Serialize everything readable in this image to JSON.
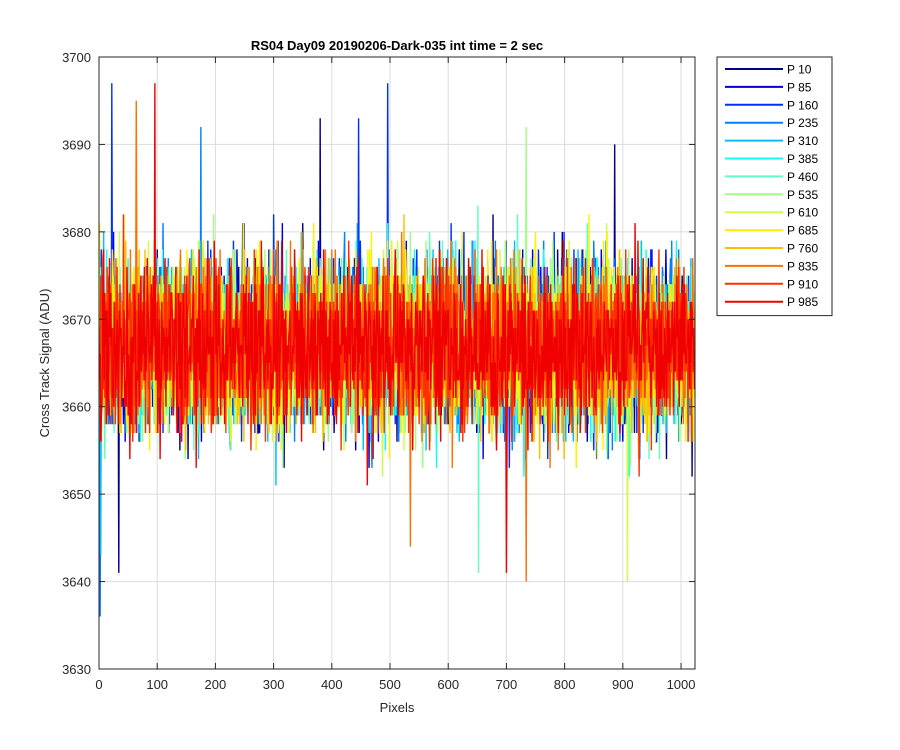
{
  "chart_data": {
    "type": "line",
    "title": "RS04 Day09 20190206-Dark-035 int time = 2 sec",
    "xlabel": "Pixels",
    "ylabel": "Cross Track Signal (ADU)",
    "xlim": [
      0,
      1024
    ],
    "ylim": [
      3630,
      3700
    ],
    "xticks": [
      0,
      100,
      200,
      300,
      400,
      500,
      600,
      700,
      800,
      900,
      1000
    ],
    "yticks": [
      3630,
      3640,
      3650,
      3660,
      3670,
      3680,
      3690,
      3700
    ],
    "grid": true,
    "legend_position": "outside-top-right",
    "x_count": 1024,
    "series": [
      {
        "name": "P 10",
        "color": "#00008F",
        "mean": 3667,
        "spread": 8.5
      },
      {
        "name": "P 85",
        "color": "#0000DF",
        "mean": 3667,
        "spread": 8.5
      },
      {
        "name": "P 160",
        "color": "#0030FF",
        "mean": 3667,
        "spread": 8.5
      },
      {
        "name": "P 235",
        "color": "#0080FF",
        "mean": 3667,
        "spread": 8.5
      },
      {
        "name": "P 310",
        "color": "#00C0FF",
        "mean": 3667,
        "spread": 8.5
      },
      {
        "name": "P 385",
        "color": "#10FFEF",
        "mean": 3667,
        "spread": 8.5
      },
      {
        "name": "P 460",
        "color": "#60FFC0",
        "mean": 3667,
        "spread": 8.5
      },
      {
        "name": "P 535",
        "color": "#9FFF80",
        "mean": 3667,
        "spread": 8.5
      },
      {
        "name": "P 610",
        "color": "#CFFF40",
        "mean": 3667,
        "spread": 8.5
      },
      {
        "name": "P 685",
        "color": "#FFF000",
        "mean": 3667,
        "spread": 8.5
      },
      {
        "name": "P 760",
        "color": "#FFBF00",
        "mean": 3667,
        "spread": 8.5
      },
      {
        "name": "P 835",
        "color": "#FF7000",
        "mean": 3667,
        "spread": 8.5
      },
      {
        "name": "P 910",
        "color": "#FF3000",
        "mean": 3667,
        "spread": 8.5
      },
      {
        "name": "P 985",
        "color": "#F00000",
        "mean": 3667,
        "spread": 8.5
      }
    ],
    "extremes": [
      {
        "series": "P 235",
        "x": 2,
        "y": 3636
      },
      {
        "series": "P 310",
        "x": 3,
        "y": 3643
      },
      {
        "series": "P 160",
        "x": 22,
        "y": 3697
      },
      {
        "series": "P 985",
        "x": 96,
        "y": 3697
      },
      {
        "series": "P 160",
        "x": 496,
        "y": 3697
      },
      {
        "series": "P 10",
        "x": 380,
        "y": 3693
      },
      {
        "series": "P 160",
        "x": 446,
        "y": 3693
      },
      {
        "series": "P 835",
        "x": 64,
        "y": 3695
      },
      {
        "series": "P 235",
        "x": 175,
        "y": 3692
      },
      {
        "series": "P 535",
        "x": 734,
        "y": 3692
      },
      {
        "series": "P 835",
        "x": 734,
        "y": 3640
      },
      {
        "series": "P 610",
        "x": 908,
        "y": 3640
      },
      {
        "series": "P 985",
        "x": 700,
        "y": 3641
      },
      {
        "series": "P 460",
        "x": 652,
        "y": 3641
      },
      {
        "series": "P 10",
        "x": 34,
        "y": 3641
      },
      {
        "series": "P 835",
        "x": 535,
        "y": 3644
      },
      {
        "series": "P 10",
        "x": 886,
        "y": 3690
      }
    ]
  }
}
